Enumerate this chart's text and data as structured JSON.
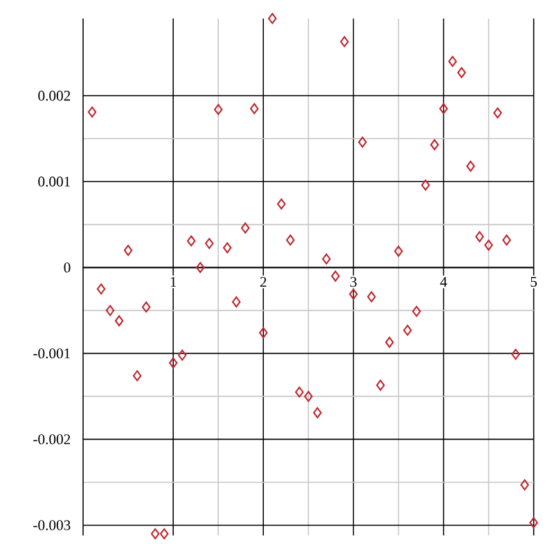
{
  "chart_data": {
    "type": "scatter",
    "x": [
      0.1,
      0.2,
      0.3,
      0.4,
      0.5,
      0.6,
      0.7,
      0.8,
      0.9,
      1.0,
      1.1,
      1.2,
      1.3,
      1.4,
      1.5,
      1.6,
      1.7,
      1.8,
      1.9,
      2.0,
      2.1,
      2.2,
      2.3,
      2.4,
      2.5,
      2.6,
      2.7,
      2.8,
      2.9,
      3.0,
      3.1,
      3.2,
      3.3,
      3.4,
      3.5,
      3.6,
      3.7,
      3.8,
      3.9,
      4.0,
      4.1,
      4.2,
      4.3,
      4.4,
      4.5,
      4.6,
      4.7,
      4.8,
      4.9,
      5.0
    ],
    "values": [
      0.00181,
      -0.00025,
      -0.0005,
      -0.00062,
      0.0002,
      -0.00126,
      -0.00046,
      -0.0031,
      -0.0031,
      -0.00111,
      -0.00102,
      0.00031,
      0.0,
      0.00028,
      0.00184,
      0.00023,
      -0.0004,
      0.00046,
      0.00185,
      -0.00076,
      0.0029,
      0.00074,
      0.00032,
      -0.00145,
      -0.0015,
      -0.00169,
      0.0001,
      -0.0001,
      0.00263,
      -0.00031,
      0.00146,
      -0.00034,
      -0.00137,
      -0.00087,
      0.00019,
      -0.00073,
      -0.00051,
      0.00096,
      0.00143,
      0.00185,
      0.0024,
      0.00227,
      0.00118,
      0.00036,
      0.00026,
      0.0018,
      0.00032,
      -0.00101,
      -0.00253,
      -0.00297
    ],
    "color": "#c0282f",
    "marker": "diamond",
    "grid": true,
    "xlim": [
      0,
      5
    ],
    "ylim": [
      -0.00312,
      0.0029
    ],
    "xticks": [
      1,
      2,
      3,
      4,
      5
    ],
    "yticks": [
      -0.003,
      -0.002,
      -0.001,
      0,
      0.001,
      0.002
    ]
  }
}
